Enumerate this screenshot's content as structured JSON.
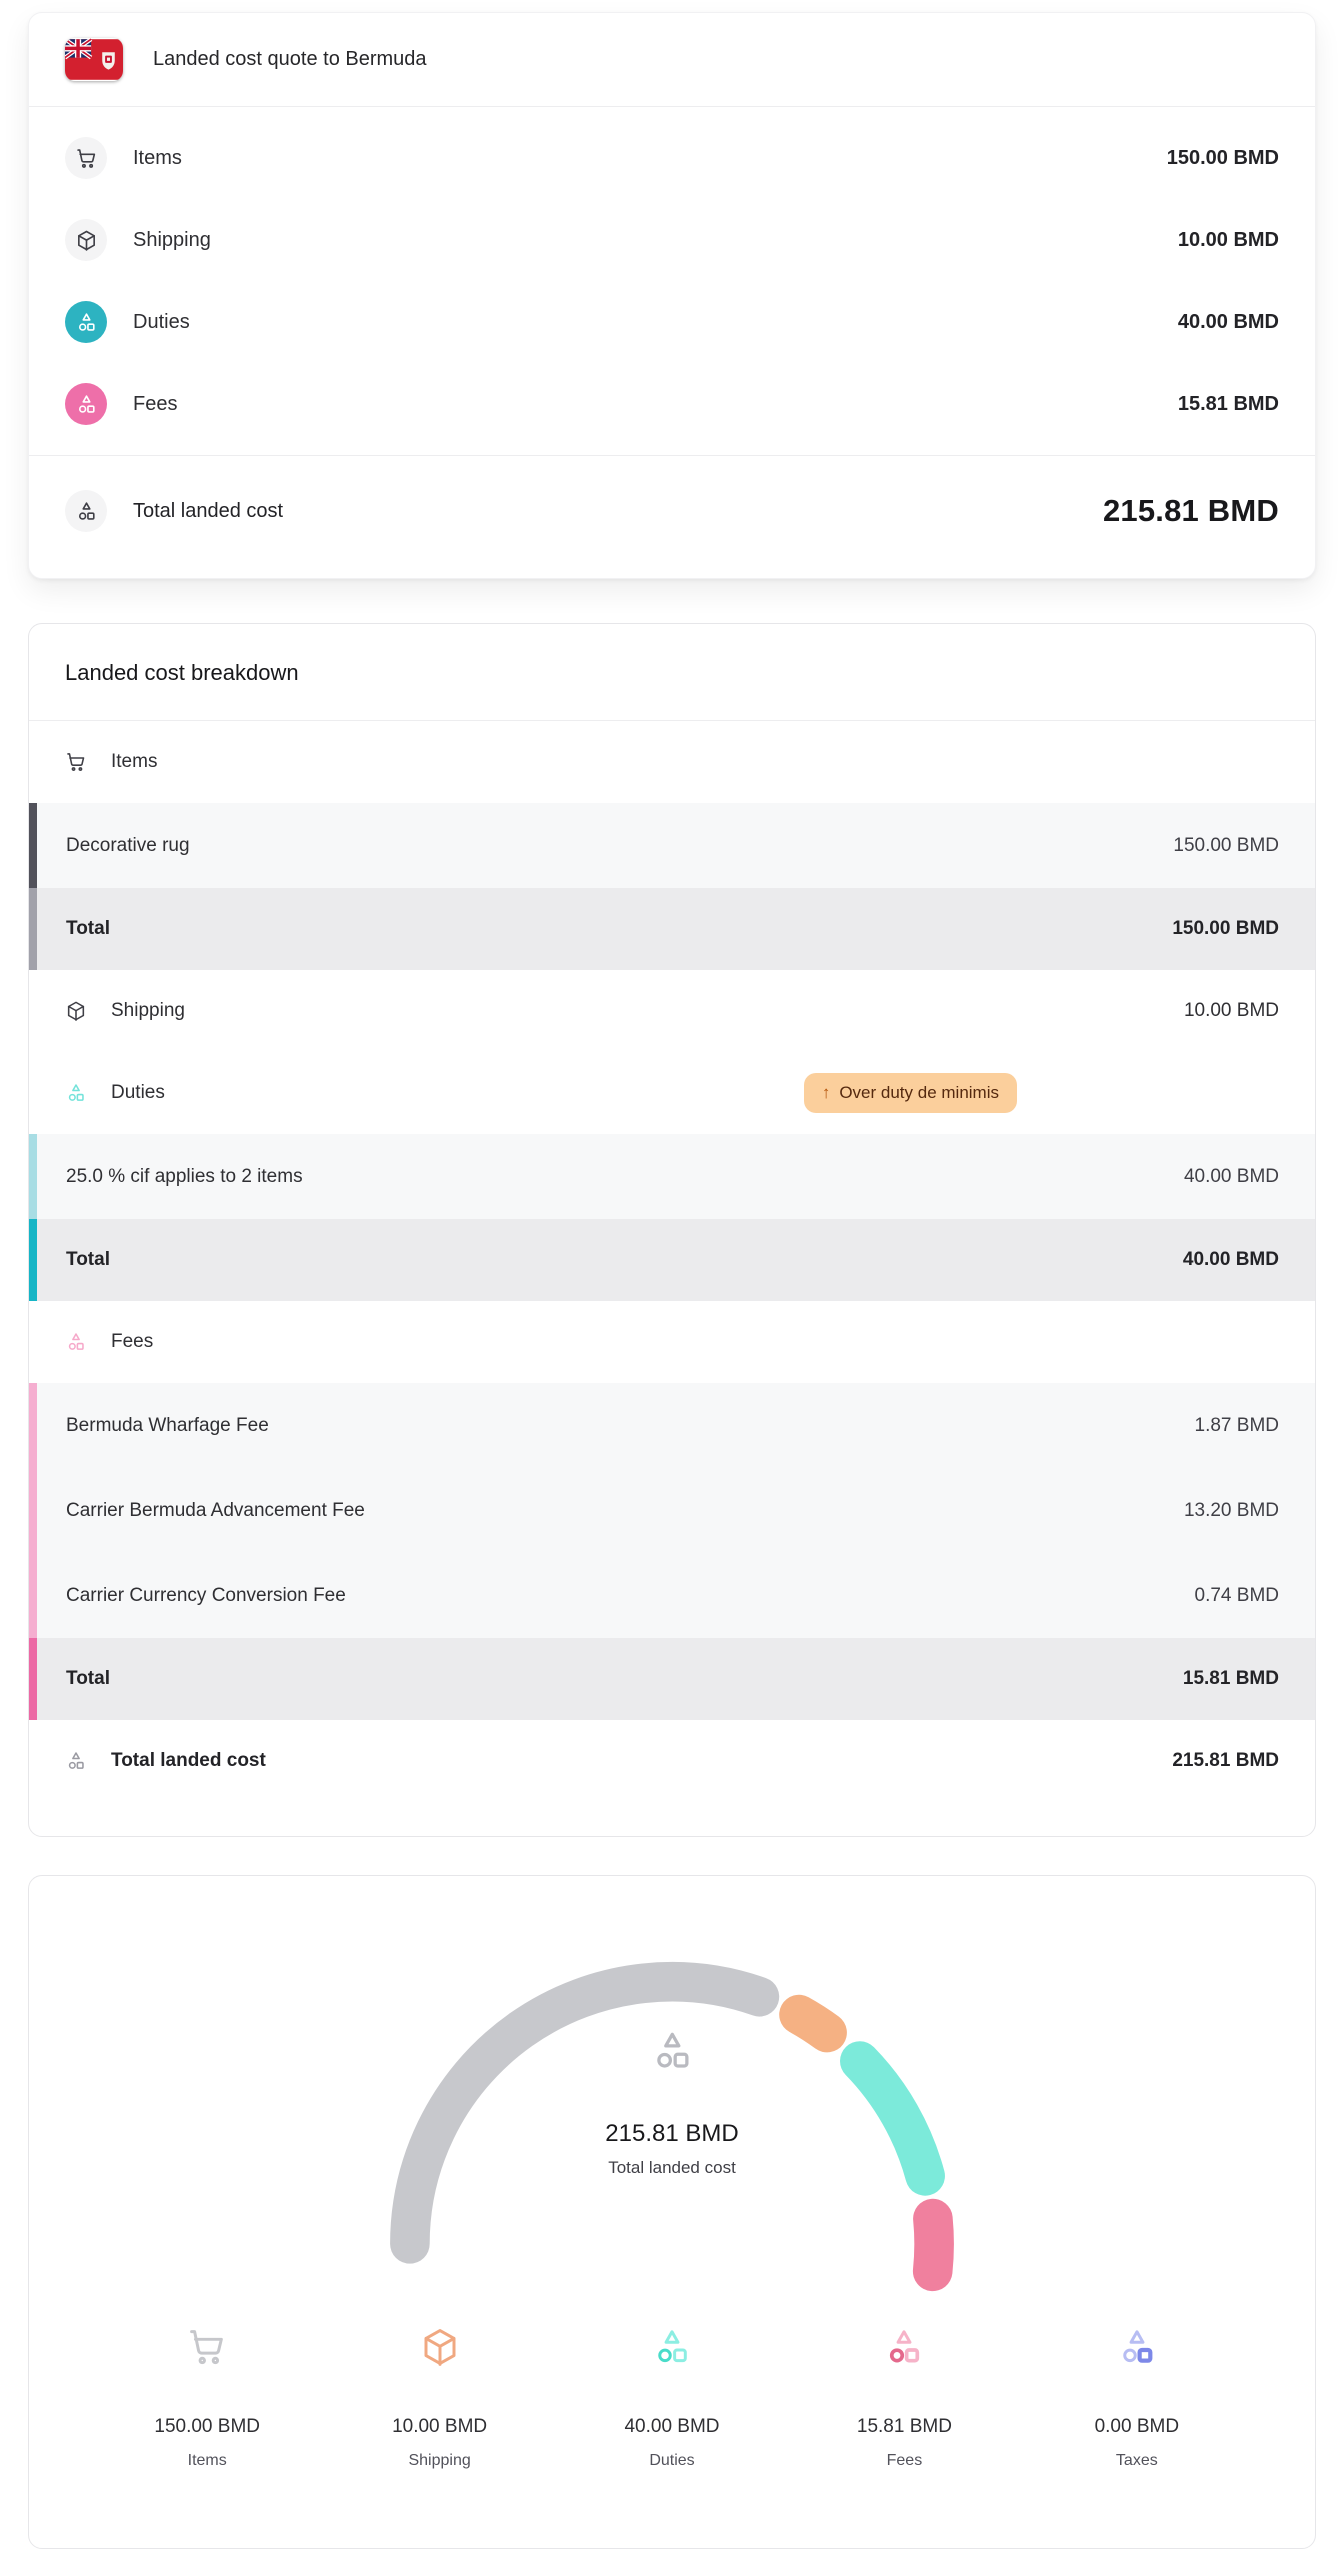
{
  "quote": {
    "title": "Landed cost quote to Bermuda",
    "flag": "bermuda-flag",
    "rows": [
      {
        "label": "Items",
        "amount": "150.00 BMD",
        "icon": "cart-icon",
        "icon_bg": "#f4f4f5",
        "icon_color": "#3f3f46"
      },
      {
        "label": "Shipping",
        "amount": "10.00 BMD",
        "icon": "package-icon",
        "icon_bg": "#f4f4f5",
        "icon_color": "#3f3f46"
      },
      {
        "label": "Duties",
        "amount": "40.00 BMD",
        "icon": "shapes-icon",
        "icon_bg": "#2db3c1",
        "icon_color": "#ffffff"
      },
      {
        "label": "Fees",
        "amount": "15.81 BMD",
        "icon": "shapes-icon",
        "icon_bg": "#ee6fa9",
        "icon_color": "#ffffff"
      }
    ],
    "total": {
      "label": "Total landed cost",
      "amount": "215.81 BMD",
      "icon_bg": "#f4f4f5",
      "icon_color": "#3f3f46"
    }
  },
  "breakdown": {
    "title": "Landed cost breakdown",
    "groups": [
      {
        "name": "Items",
        "header": {
          "label": "Items",
          "icon_color": "#3f3f46"
        },
        "accent_row": "#52525b",
        "accent_total": "#a1a1aa",
        "rows": [
          {
            "label": "Decorative rug",
            "amount": "150.00 BMD"
          }
        ],
        "total": {
          "label": "Total",
          "amount": "150.00 BMD"
        }
      },
      {
        "name": "Shipping",
        "header": {
          "label": "Shipping",
          "icon_color": "#3f3f46",
          "amount": "10.00 BMD"
        }
      },
      {
        "name": "Duties",
        "header": {
          "label": "Duties",
          "icon_color": "#74e3da",
          "badge": {
            "arrow": "↑",
            "text": "Over duty de minimis",
            "bg": "#fbcf9c",
            "text_color": "#55290f",
            "arrow_color": "#b45309"
          }
        },
        "accent_row": "#a8dde4",
        "accent_total": "#16b5c6",
        "rows": [
          {
            "label": "25.0 % cif applies to 2 items",
            "amount": "40.00 BMD"
          }
        ],
        "total": {
          "label": "Total",
          "amount": "40.00 BMD"
        }
      },
      {
        "name": "Fees",
        "header": {
          "label": "Fees",
          "icon_color": "#f6a9ca"
        },
        "accent_row": "#f5aed0",
        "accent_total": "#ec69a5",
        "rows": [
          {
            "label": "Bermuda Wharfage Fee",
            "amount": "1.87 BMD"
          },
          {
            "label": "Carrier Bermuda Advancement Fee",
            "amount": "13.20 BMD"
          },
          {
            "label": "Carrier Currency Conversion Fee",
            "amount": "0.74 BMD"
          }
        ],
        "total": {
          "label": "Total",
          "amount": "15.81 BMD"
        }
      }
    ],
    "grand_total": {
      "label": "Total landed cost",
      "amount": "215.81 BMD",
      "icon_color": "#9a9aa2"
    }
  },
  "gauge": {
    "center_value": "215.81 BMD",
    "center_label": "Total landed cost",
    "center_icon_color": "#b9bac0",
    "stats": [
      {
        "value": "150.00 BMD",
        "label": "Items",
        "icon": "cart-icon",
        "color": "#c6c7cb",
        "accent": "#c6c7cb"
      },
      {
        "value": "10.00 BMD",
        "label": "Shipping",
        "icon": "package-icon",
        "color": "#f0a881",
        "accent": "#f0a881"
      },
      {
        "value": "40.00 BMD",
        "label": "Duties",
        "icon": "shapes-icon",
        "color": "#8ceee2",
        "accent": "#49dcc9"
      },
      {
        "value": "15.81 BMD",
        "label": "Fees",
        "icon": "shapes-icon",
        "color": "#f6b3c8",
        "accent": "#e4698c"
      },
      {
        "value": "0.00 BMD",
        "label": "Taxes",
        "icon": "shapes-icon",
        "color": "#b7bdf3",
        "accent": "#7d88e8"
      }
    ]
  },
  "chart_data": {
    "type": "gauge",
    "title": "Total landed cost",
    "center_value": "215.81 BMD",
    "total": 215.81,
    "unit": "BMD",
    "arc_span_degrees": 186,
    "segment_gap_degrees": 9.5,
    "legend_position": "bottom",
    "segments": [
      {
        "name": "Items",
        "value": 150.0,
        "color": "#c7c8cc"
      },
      {
        "name": "Shipping",
        "value": 10.0,
        "color": "#f5b183"
      },
      {
        "name": "Duties",
        "value": 40.0,
        "color": "#7ceada"
      },
      {
        "name": "Fees",
        "value": 15.81,
        "color": "#f0809e"
      }
    ]
  }
}
